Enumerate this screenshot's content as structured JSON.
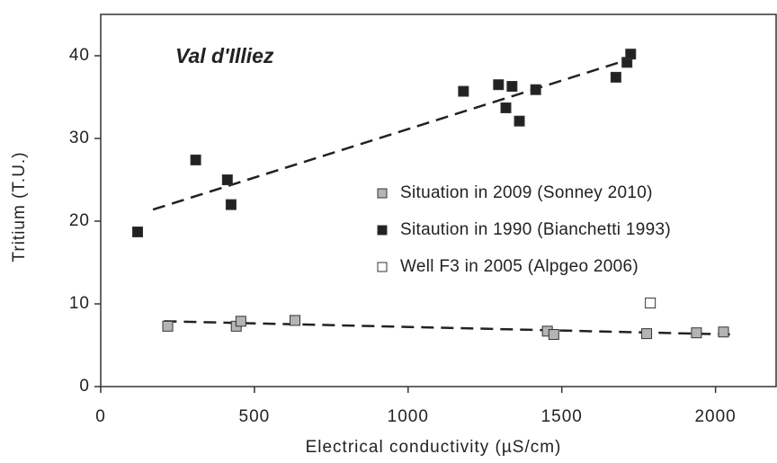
{
  "chart_data": {
    "type": "scatter",
    "annotation": "Val d'Illiez",
    "xlabel": "Electrical conductivity (µS/cm)",
    "ylabel": "Tritium (T.U.)",
    "xlim": [
      0,
      2200
    ],
    "ylim": [
      0,
      45
    ],
    "xticks": [
      0,
      500,
      1000,
      1500,
      2000
    ],
    "yticks": [
      0,
      10,
      20,
      30,
      40
    ],
    "legend": "right",
    "series": [
      {
        "name": "Situation in 2009 (Sonney 2010)",
        "color": "#b4b4b4",
        "x": [
          218,
          441,
          456,
          632,
          1453,
          1474,
          1776,
          1938,
          2026
        ],
        "values": [
          7.3,
          7.3,
          7.9,
          8.0,
          6.7,
          6.3,
          6.4,
          6.5,
          6.6
        ],
        "trend": {
          "x": [
            206,
            2047
          ],
          "y": [
            7.9,
            6.3
          ]
        }
      },
      {
        "name": "Sitaution in 1990 (Bianchetti 1993)",
        "color": "#222222",
        "x": [
          120,
          309,
          412,
          424,
          1180,
          1294,
          1338,
          1318,
          1362,
          1415,
          1676,
          1712,
          1724
        ],
        "values": [
          18.7,
          27.4,
          25.0,
          22.0,
          35.7,
          36.5,
          36.3,
          33.7,
          32.1,
          35.9,
          37.4,
          39.2,
          40.2
        ],
        "trend": {
          "x": [
            170,
            1730
          ],
          "y": [
            21.4,
            39.7
          ]
        }
      },
      {
        "name": "Well F3 in 2005 (Alpgeo 2006)",
        "color": "#ffffff",
        "x": [
          1788
        ],
        "values": [
          10.1
        ]
      }
    ]
  }
}
